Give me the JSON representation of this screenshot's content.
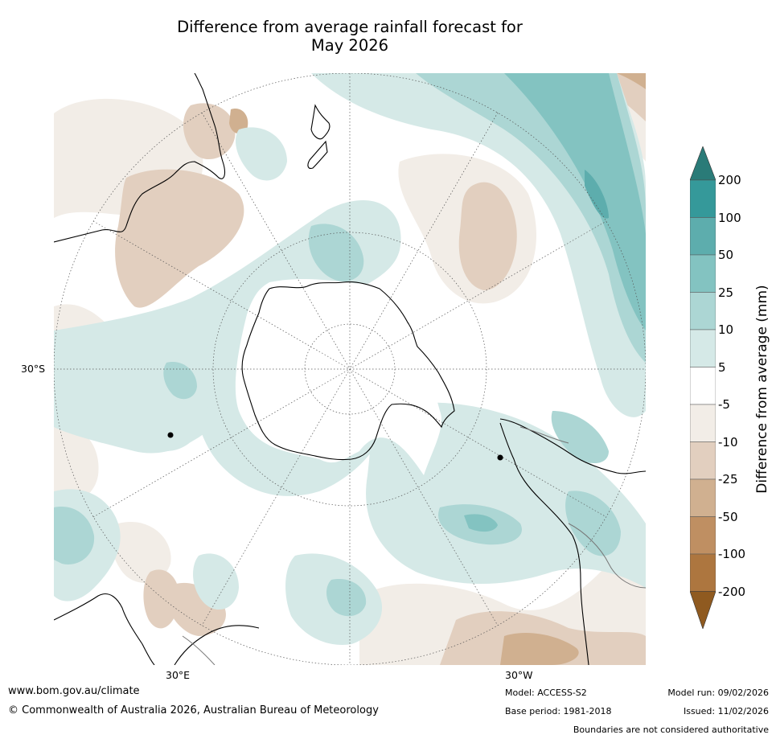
{
  "title_line1": "Difference from average rainfall forecast for",
  "title_line2": "May 2026",
  "labels": {
    "lat_30s": "30°S",
    "lon_30e": "30°E",
    "lon_30w": "30°W"
  },
  "colorbar": {
    "label": "Difference from average (mm)",
    "ticks": [
      "200",
      "100",
      "50",
      "25",
      "10",
      "5",
      "-5",
      "-10",
      "-25",
      "-50",
      "-100",
      "-200"
    ],
    "colors": {
      "over": "#2a7b78",
      "c200": "#35999a",
      "c100": "#5dadad",
      "c50": "#83c3c1",
      "c25": "#acd6d4",
      "c10": "#d5e9e7",
      "c5": "#ffffff",
      "cm5": "#f2ede7",
      "cm10": "#e2cfbf",
      "cm25": "#d0b090",
      "cm50": "#bf8f62",
      "cm100": "#ad763f",
      "under": "#8f5a20"
    }
  },
  "footer": {
    "url": "www.bom.gov.au/climate",
    "copyright": "© Commonwealth of Australia 2026, Australian Bureau of Meteorology",
    "model": "Model: ACCESS-S2",
    "base_period": "Base period: 1981-2018",
    "model_run": "Model run: 09/02/2026",
    "issued": "Issued: 11/02/2026",
    "disclaimer": "Boundaries are not considered authoritative"
  }
}
